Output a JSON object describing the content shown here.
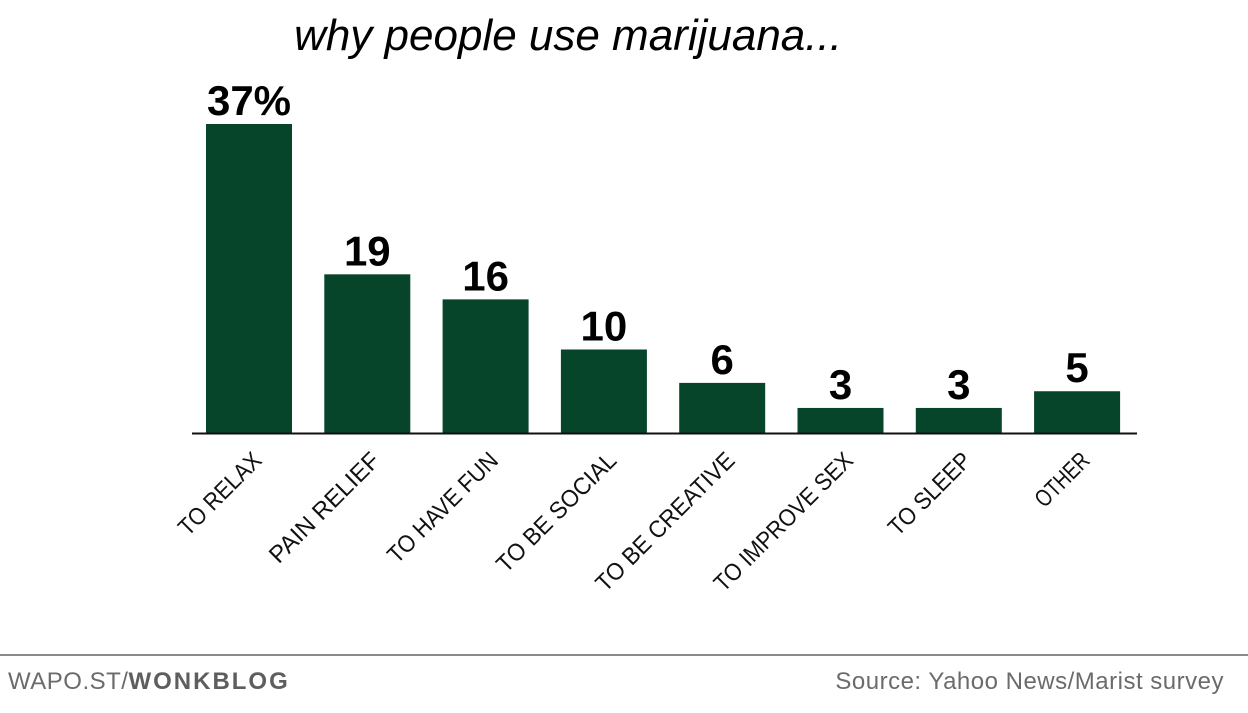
{
  "chart_data": {
    "type": "bar",
    "title": "why people use marijuana...",
    "categories": [
      "TO RELAX",
      "PAIN RELIEF",
      "TO HAVE FUN",
      "TO BE SOCIAL",
      "TO BE CREATIVE",
      "TO IMPROVE SEX",
      "TO SLEEP",
      "OTHER"
    ],
    "values": [
      37,
      19,
      16,
      10,
      6,
      3,
      3,
      5
    ],
    "data_labels": [
      "37%",
      "19",
      "16",
      "10",
      "6",
      "3",
      "3",
      "5"
    ],
    "unit": "%",
    "xlabel": "",
    "ylabel": "",
    "ylim": [
      0,
      37
    ],
    "grid": false,
    "bar_color": "#06452a"
  },
  "footer": {
    "site_prefix": "WAPO.ST/",
    "site_name": "WONKBLOG",
    "source": "Source: Yahoo News/Marist survey"
  }
}
